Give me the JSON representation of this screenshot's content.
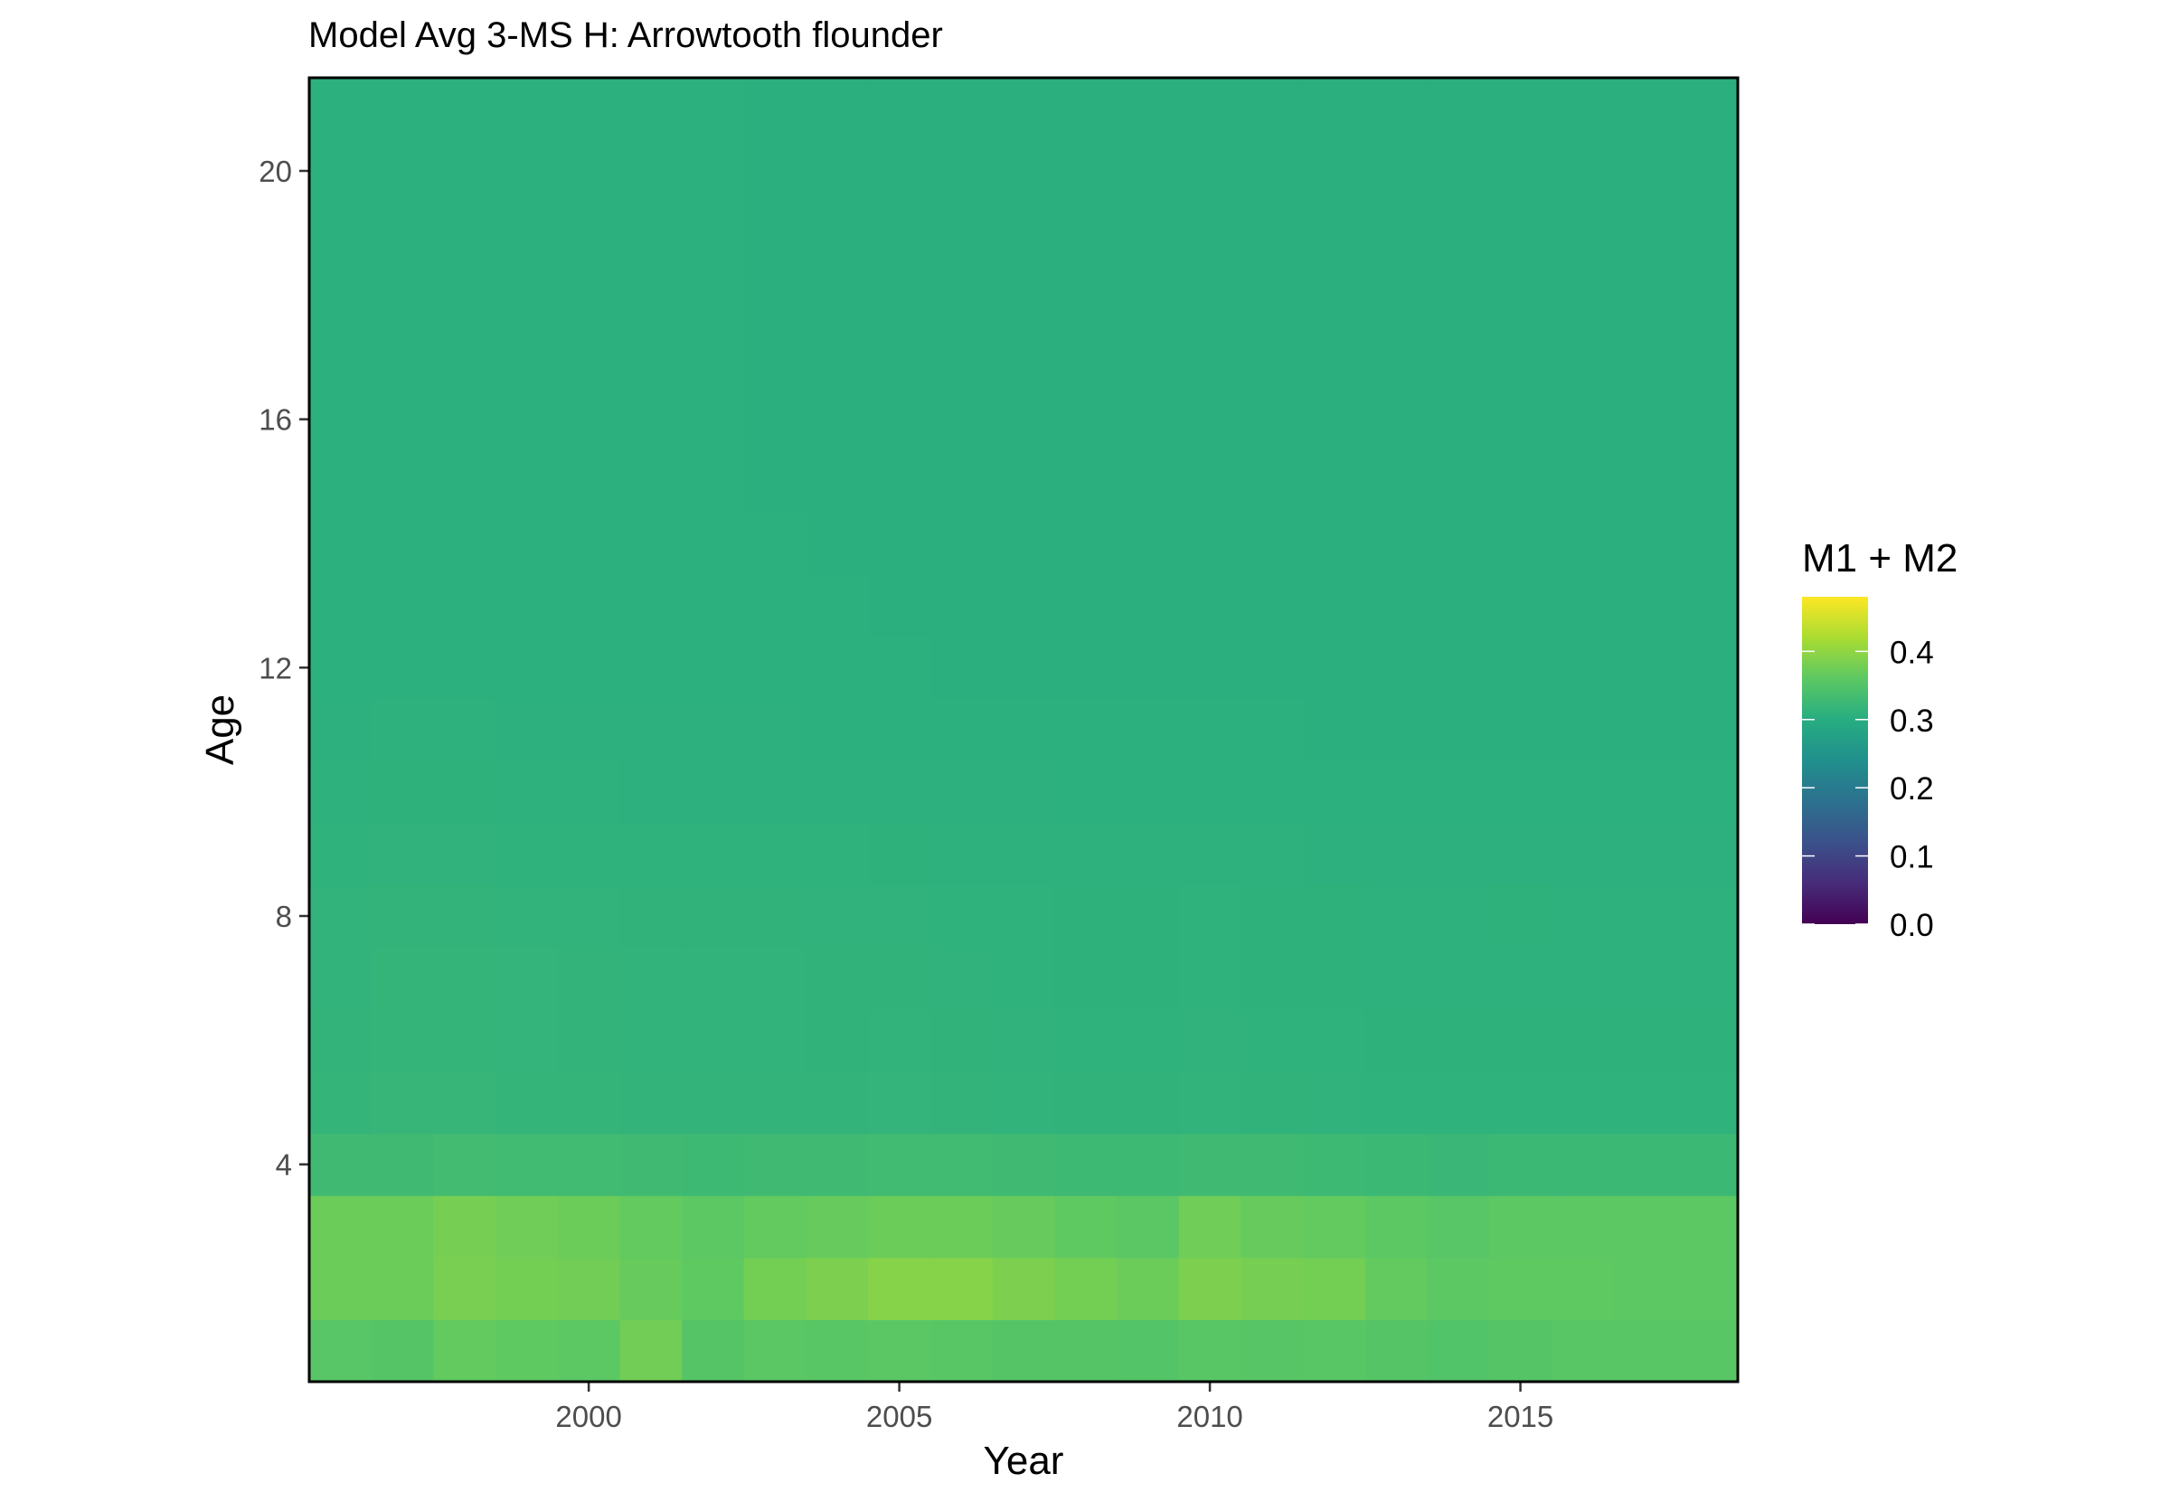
{
  "chart_data": {
    "type": "heatmap",
    "title": "Model Avg 3-MS H: Arrowtooth flounder",
    "xlabel": "Year",
    "ylabel": "Age",
    "x": [
      1996,
      1997,
      1998,
      1999,
      2000,
      2001,
      2002,
      2003,
      2004,
      2005,
      2006,
      2007,
      2008,
      2009,
      2010,
      2011,
      2012,
      2013,
      2014,
      2015,
      2016,
      2017,
      2018
    ],
    "y": [
      1,
      2,
      3,
      4,
      5,
      6,
      7,
      8,
      9,
      10,
      11,
      12,
      13,
      14,
      15,
      16,
      17,
      18,
      19,
      20,
      21
    ],
    "xlim": [
      1995.5,
      2018.5
    ],
    "ylim": [
      0.5,
      21.5
    ],
    "x_ticks": [
      2000,
      2005,
      2010,
      2015
    ],
    "y_ticks": [
      4,
      8,
      12,
      16,
      20
    ],
    "colorbar": {
      "title": "M1 + M2",
      "colormap": "viridis",
      "range": [
        0,
        0.48
      ],
      "ticks": [
        0.0,
        0.1,
        0.2,
        0.3,
        0.4
      ],
      "tick_labels": [
        "0.0",
        "0.1",
        "0.2",
        "0.3",
        "0.4"
      ]
    },
    "rows": [
      {
        "age": 1,
        "values": [
          0.355,
          0.352,
          0.365,
          0.362,
          0.36,
          0.376,
          0.352,
          0.358,
          0.356,
          0.358,
          0.356,
          0.352,
          0.352,
          0.35,
          0.356,
          0.354,
          0.356,
          0.352,
          0.348,
          0.352,
          0.356,
          0.356,
          0.356
        ]
      },
      {
        "age": 2,
        "values": [
          0.372,
          0.372,
          0.382,
          0.378,
          0.376,
          0.368,
          0.362,
          0.378,
          0.385,
          0.392,
          0.392,
          0.385,
          0.378,
          0.372,
          0.385,
          0.38,
          0.378,
          0.365,
          0.36,
          0.362,
          0.362,
          0.36,
          0.36
        ]
      },
      {
        "age": 3,
        "values": [
          0.372,
          0.372,
          0.38,
          0.375,
          0.372,
          0.365,
          0.36,
          0.365,
          0.368,
          0.372,
          0.372,
          0.368,
          0.362,
          0.358,
          0.375,
          0.368,
          0.365,
          0.36,
          0.355,
          0.36,
          0.36,
          0.36,
          0.36
        ]
      },
      {
        "age": 4,
        "values": [
          0.328,
          0.328,
          0.332,
          0.33,
          0.33,
          0.328,
          0.326,
          0.328,
          0.328,
          0.33,
          0.33,
          0.328,
          0.326,
          0.326,
          0.328,
          0.328,
          0.326,
          0.324,
          0.322,
          0.324,
          0.324,
          0.324,
          0.324
        ]
      },
      {
        "age": 5,
        "values": [
          0.316,
          0.318,
          0.318,
          0.316,
          0.316,
          0.314,
          0.314,
          0.314,
          0.314,
          0.315,
          0.314,
          0.313,
          0.312,
          0.312,
          0.313,
          0.312,
          0.311,
          0.31,
          0.31,
          0.31,
          0.31,
          0.31,
          0.31
        ]
      },
      {
        "age": 6,
        "values": [
          0.314,
          0.316,
          0.316,
          0.315,
          0.314,
          0.313,
          0.313,
          0.313,
          0.312,
          0.313,
          0.312,
          0.311,
          0.31,
          0.31,
          0.311,
          0.31,
          0.31,
          0.309,
          0.309,
          0.309,
          0.309,
          0.309,
          0.309
        ]
      },
      {
        "age": 7,
        "values": [
          0.313,
          0.316,
          0.316,
          0.315,
          0.314,
          0.313,
          0.313,
          0.313,
          0.312,
          0.312,
          0.311,
          0.31,
          0.309,
          0.309,
          0.31,
          0.309,
          0.309,
          0.308,
          0.308,
          0.308,
          0.308,
          0.308,
          0.308
        ]
      },
      {
        "age": 8,
        "values": [
          0.313,
          0.314,
          0.314,
          0.313,
          0.313,
          0.312,
          0.312,
          0.312,
          0.311,
          0.311,
          0.31,
          0.31,
          0.309,
          0.309,
          0.31,
          0.309,
          0.309,
          0.308,
          0.308,
          0.309,
          0.308,
          0.308,
          0.308
        ]
      },
      {
        "age": 9,
        "values": [
          0.31,
          0.311,
          0.311,
          0.31,
          0.31,
          0.31,
          0.31,
          0.31,
          0.31,
          0.309,
          0.308,
          0.308,
          0.308,
          0.308,
          0.308,
          0.308,
          0.307,
          0.307,
          0.307,
          0.307,
          0.307,
          0.307,
          0.307
        ]
      },
      {
        "age": 10,
        "values": [
          0.308,
          0.309,
          0.309,
          0.308,
          0.308,
          0.307,
          0.307,
          0.307,
          0.307,
          0.307,
          0.307,
          0.307,
          0.306,
          0.306,
          0.306,
          0.306,
          0.306,
          0.306,
          0.306,
          0.306,
          0.306,
          0.306,
          0.306
        ]
      },
      {
        "age": 11,
        "values": [
          0.307,
          0.308,
          0.308,
          0.307,
          0.307,
          0.307,
          0.307,
          0.307,
          0.306,
          0.306,
          0.306,
          0.306,
          0.306,
          0.306,
          0.306,
          0.306,
          0.305,
          0.305,
          0.305,
          0.305,
          0.305,
          0.305,
          0.305
        ]
      },
      {
        "age": 12,
        "values": [
          0.306,
          0.306,
          0.306,
          0.306,
          0.306,
          0.306,
          0.306,
          0.306,
          0.306,
          0.306,
          0.305,
          0.305,
          0.305,
          0.305,
          0.305,
          0.305,
          0.305,
          0.305,
          0.305,
          0.305,
          0.305,
          0.305,
          0.305
        ]
      },
      {
        "age": 13,
        "values": [
          0.306,
          0.306,
          0.306,
          0.306,
          0.306,
          0.306,
          0.306,
          0.306,
          0.306,
          0.305,
          0.305,
          0.305,
          0.305,
          0.305,
          0.305,
          0.305,
          0.305,
          0.305,
          0.305,
          0.305,
          0.305,
          0.305,
          0.305
        ]
      },
      {
        "age": 14,
        "values": [
          0.306,
          0.306,
          0.306,
          0.306,
          0.306,
          0.306,
          0.306,
          0.306,
          0.305,
          0.305,
          0.305,
          0.305,
          0.305,
          0.305,
          0.305,
          0.305,
          0.305,
          0.305,
          0.305,
          0.305,
          0.305,
          0.305,
          0.305
        ]
      },
      {
        "age": 15,
        "values": [
          0.306,
          0.306,
          0.306,
          0.306,
          0.306,
          0.306,
          0.306,
          0.305,
          0.305,
          0.305,
          0.305,
          0.305,
          0.305,
          0.305,
          0.305,
          0.305,
          0.305,
          0.305,
          0.305,
          0.305,
          0.305,
          0.305,
          0.305
        ]
      },
      {
        "age": 16,
        "values": [
          0.306,
          0.306,
          0.306,
          0.306,
          0.306,
          0.306,
          0.306,
          0.305,
          0.305,
          0.305,
          0.305,
          0.305,
          0.305,
          0.305,
          0.305,
          0.305,
          0.305,
          0.305,
          0.305,
          0.305,
          0.305,
          0.305,
          0.305
        ]
      },
      {
        "age": 17,
        "values": [
          0.306,
          0.306,
          0.306,
          0.306,
          0.306,
          0.306,
          0.306,
          0.305,
          0.305,
          0.305,
          0.305,
          0.305,
          0.305,
          0.305,
          0.305,
          0.305,
          0.305,
          0.305,
          0.305,
          0.305,
          0.305,
          0.305,
          0.305
        ]
      },
      {
        "age": 18,
        "values": [
          0.306,
          0.306,
          0.306,
          0.306,
          0.306,
          0.306,
          0.306,
          0.305,
          0.305,
          0.305,
          0.305,
          0.305,
          0.305,
          0.305,
          0.305,
          0.305,
          0.305,
          0.305,
          0.305,
          0.305,
          0.305,
          0.305,
          0.305
        ]
      },
      {
        "age": 19,
        "values": [
          0.306,
          0.306,
          0.306,
          0.306,
          0.306,
          0.306,
          0.306,
          0.305,
          0.305,
          0.305,
          0.305,
          0.305,
          0.305,
          0.305,
          0.305,
          0.305,
          0.305,
          0.305,
          0.305,
          0.305,
          0.305,
          0.305,
          0.305
        ]
      },
      {
        "age": 20,
        "values": [
          0.306,
          0.306,
          0.306,
          0.306,
          0.306,
          0.306,
          0.306,
          0.305,
          0.305,
          0.305,
          0.305,
          0.305,
          0.305,
          0.305,
          0.305,
          0.305,
          0.305,
          0.305,
          0.305,
          0.305,
          0.305,
          0.305,
          0.305
        ]
      },
      {
        "age": 21,
        "values": [
          0.306,
          0.306,
          0.306,
          0.306,
          0.306,
          0.306,
          0.306,
          0.305,
          0.305,
          0.305,
          0.305,
          0.305,
          0.305,
          0.305,
          0.305,
          0.305,
          0.305,
          0.305,
          0.305,
          0.305,
          0.305,
          0.305,
          0.305
        ]
      }
    ],
    "grid": false,
    "legend_position": "right"
  }
}
